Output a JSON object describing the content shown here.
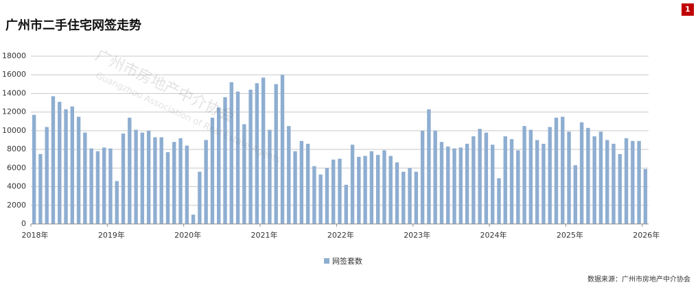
{
  "badge": "1",
  "source": "数据来源：广州市房地产中介协会",
  "watermark": {
    "name": "广州市房地产中介协会",
    "english": "Guangzhou Association of Real Estate Agents"
  },
  "chart_data": {
    "type": "bar",
    "title": "广州市二手住宅网签走势",
    "categories": [
      "2018年",
      null,
      null,
      null,
      null,
      null,
      null,
      null,
      null,
      null,
      null,
      null,
      "2019年",
      null,
      null,
      null,
      null,
      null,
      null,
      null,
      null,
      null,
      null,
      null,
      "2020年",
      null,
      null,
      null,
      null,
      null,
      null,
      null,
      null,
      null,
      null,
      null,
      "2021年",
      null,
      null,
      null,
      null,
      null,
      null,
      null,
      null,
      null,
      null,
      null,
      "2022年",
      null,
      null,
      null,
      null,
      null,
      null,
      null,
      null,
      null,
      null,
      null,
      "2023年",
      null,
      null,
      null,
      null,
      null,
      null,
      null,
      null,
      null,
      null,
      null,
      "2024年",
      null,
      null,
      null,
      null,
      null,
      null,
      null,
      null,
      null,
      null,
      null,
      "2025年",
      null,
      null,
      null,
      null,
      null,
      null,
      null,
      null,
      null,
      null,
      null,
      "2026年"
    ],
    "series": [
      {
        "name": "网签套数",
        "color": "#8eaed1",
        "values": [
          11700,
          7500,
          10400,
          13700,
          13100,
          12300,
          12600,
          11500,
          9800,
          8100,
          7800,
          8200,
          8100,
          4600,
          9700,
          11400,
          10100,
          9800,
          10000,
          9300,
          9300,
          7700,
          8800,
          9200,
          8400,
          1000,
          5600,
          9000,
          11400,
          12500,
          13600,
          15200,
          14200,
          10700,
          14400,
          15100,
          15700,
          10100,
          15000,
          16000,
          10500,
          7800,
          8900,
          8600,
          6200,
          5300,
          6000,
          6900,
          7000,
          4200,
          8500,
          7200,
          7300,
          7800,
          7400,
          7900,
          7300,
          6600,
          5600,
          6000,
          5600,
          10000,
          12300,
          10000,
          8800,
          8300,
          8100,
          8200,
          8600,
          9400,
          10200,
          9800,
          8500,
          4900,
          9400,
          9100,
          7900,
          10500,
          10100,
          9000,
          8600,
          10400,
          11400,
          11500,
          9900,
          6300,
          10900,
          10300,
          9400,
          9900,
          9000,
          8600,
          7500,
          9200,
          8900,
          8900,
          5900
        ]
      }
    ],
    "ylim": [
      0,
      18000
    ],
    "yticks": [
      0,
      2000,
      4000,
      6000,
      8000,
      10000,
      12000,
      14000,
      16000,
      18000
    ],
    "grid": true,
    "legend": "bottom"
  }
}
